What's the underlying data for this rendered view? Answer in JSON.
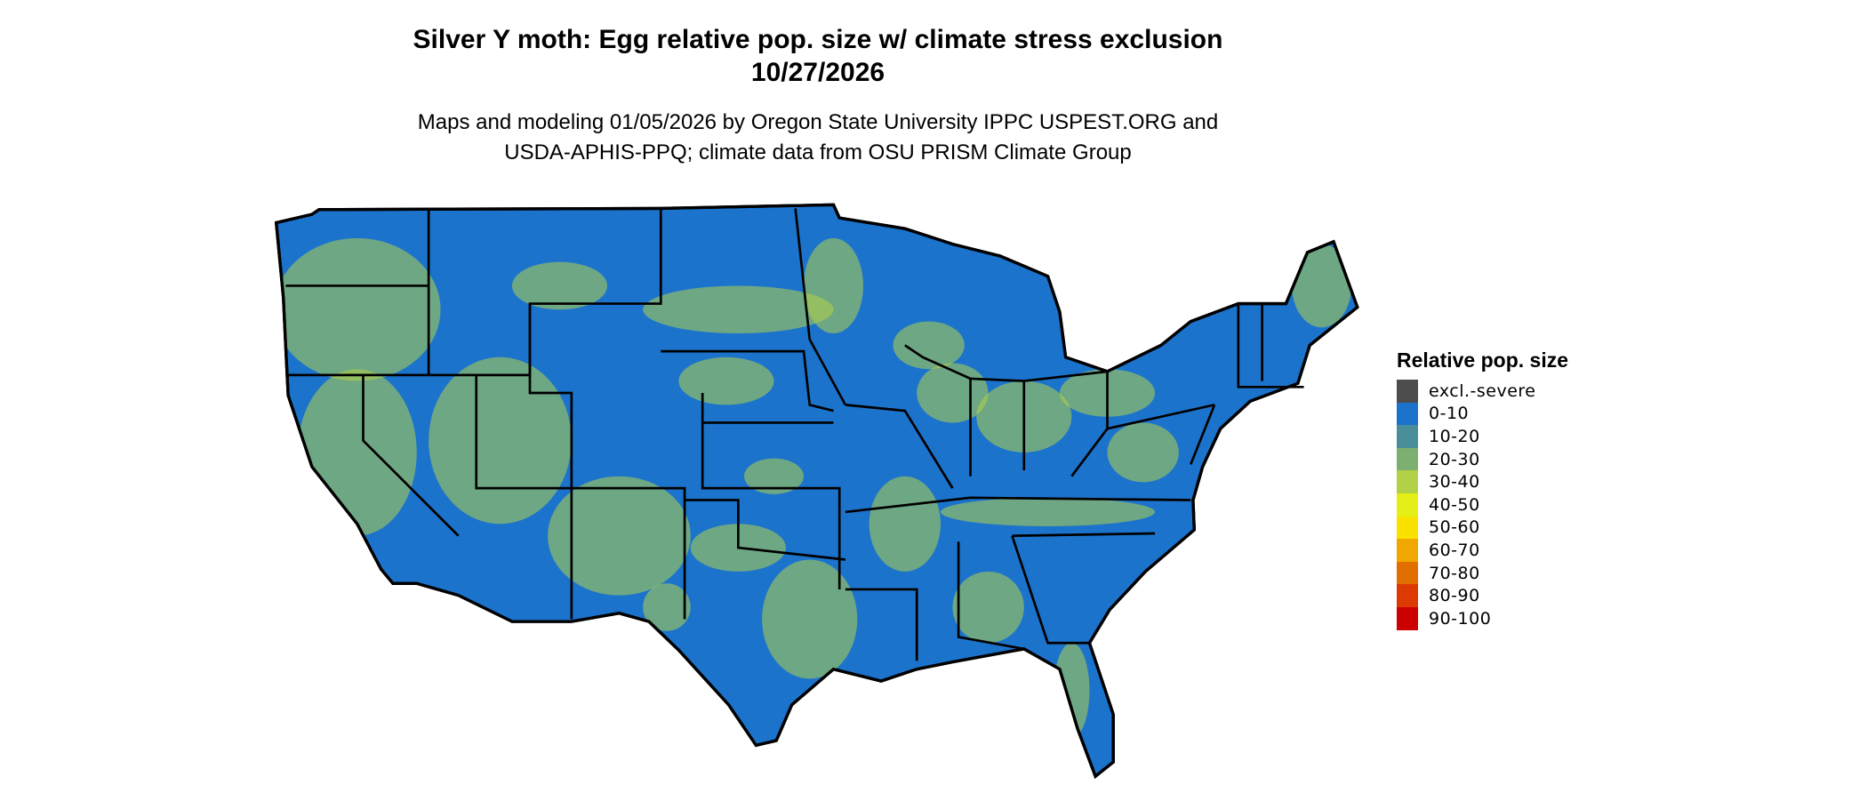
{
  "title": {
    "line1": "Silver Y moth: Egg relative pop. size w/ climate stress exclusion",
    "line2": "10/27/2026"
  },
  "subtitle": {
    "line1": "Maps and modeling 01/05/2026 by Oregon State University IPPC USPEST.ORG and",
    "line2": "USDA-APHIS-PPQ; climate data from OSU PRISM Climate Group"
  },
  "map": {
    "region": "Contiguous United States",
    "dominant_class": "0-10",
    "secondary_class": "30-40",
    "boundary_color": "#000000"
  },
  "legend": {
    "title": "Relative pop. size",
    "items": [
      {
        "label": "excl.-severe",
        "color": "#4d4d4d"
      },
      {
        "label": "0-10",
        "color": "#1c73cc"
      },
      {
        "label": "10-20",
        "color": "#488f9a"
      },
      {
        "label": "20-30",
        "color": "#7daf71"
      },
      {
        "label": "30-40",
        "color": "#b2d147"
      },
      {
        "label": "40-50",
        "color": "#e3ef17"
      },
      {
        "label": "50-60",
        "color": "#f9e200"
      },
      {
        "label": "60-70",
        "color": "#f0a800"
      },
      {
        "label": "70-80",
        "color": "#e36e00"
      },
      {
        "label": "80-90",
        "color": "#dc3a00"
      },
      {
        "label": "90-100",
        "color": "#cc0000"
      }
    ]
  }
}
